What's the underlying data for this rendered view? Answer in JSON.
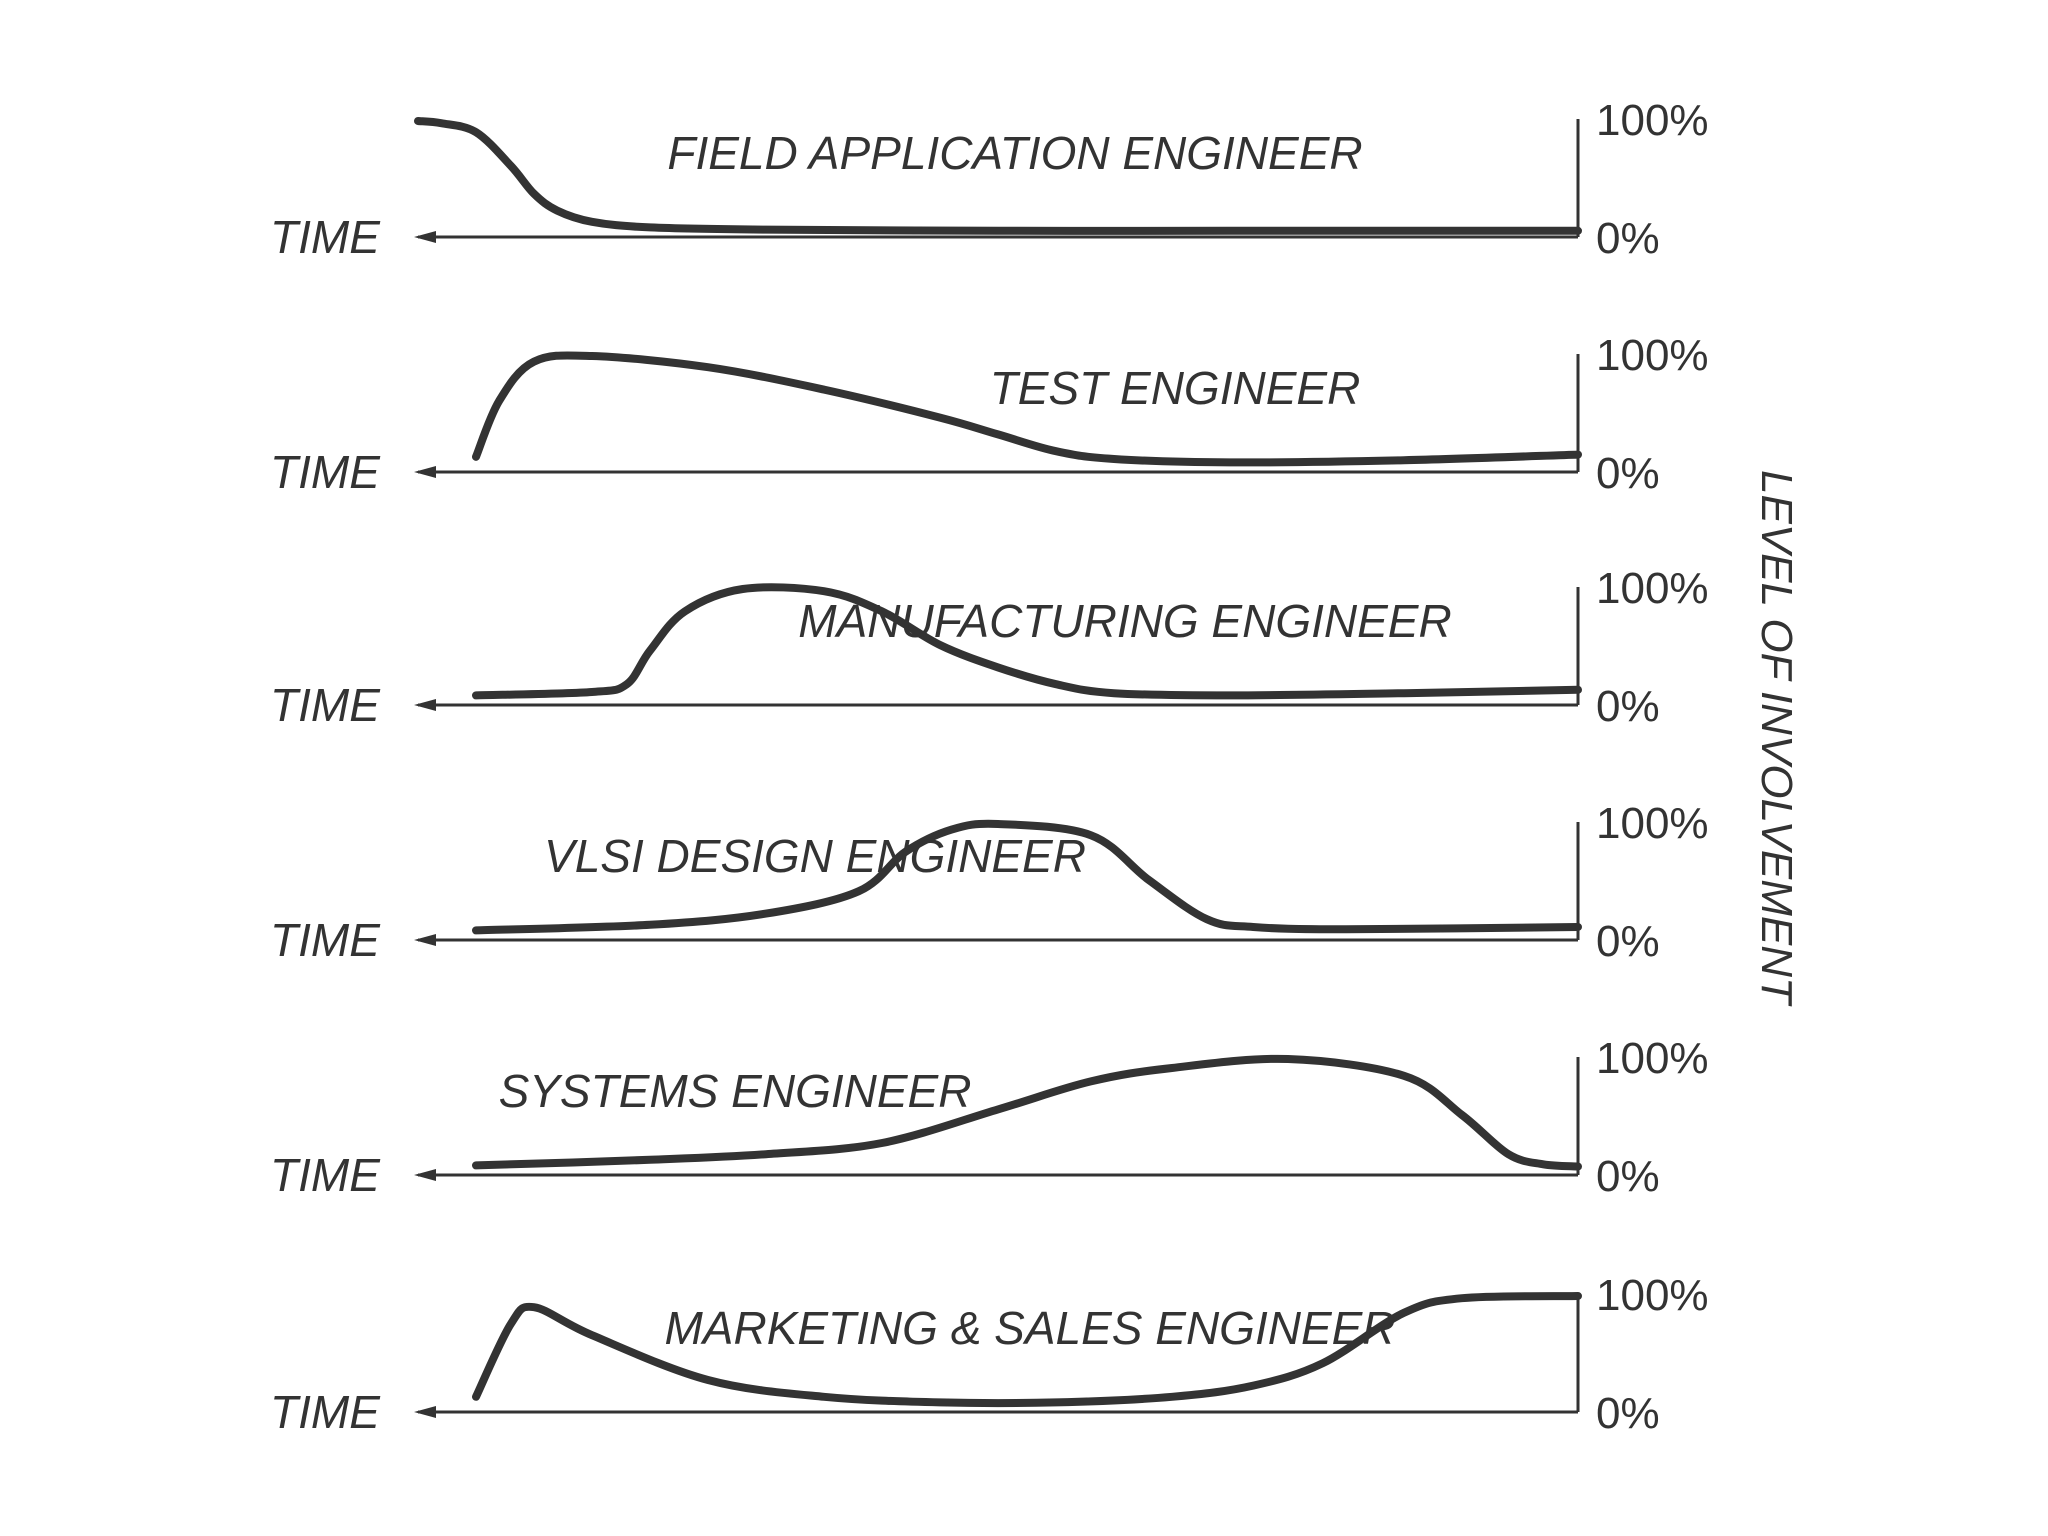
{
  "chart_data": {
    "type": "line",
    "ylabel": "LEVEL OF INVOLVEMENT",
    "xlabel": "TIME",
    "y_ticks": [
      "100%",
      "0%"
    ],
    "ylim": [
      0,
      100
    ],
    "colors": {
      "ink": "#333333",
      "background": "#ffffff"
    },
    "charts": [
      {
        "title": "FIELD APPLICATION ENGINEER",
        "x": [
          0,
          0.02,
          0.05,
          0.08,
          0.1,
          0.12,
          0.15,
          0.2,
          0.3,
          0.5,
          0.7,
          1.0
        ],
        "y": [
          100,
          98,
          90,
          60,
          35,
          20,
          10,
          5,
          3,
          2,
          2,
          2
        ]
      },
      {
        "title": "TEST ENGINEER",
        "x": [
          0.05,
          0.07,
          0.1,
          0.15,
          0.25,
          0.35,
          0.45,
          0.5,
          0.55,
          0.6,
          0.7,
          0.85,
          1.0
        ],
        "y": [
          10,
          60,
          95,
          100,
          90,
          70,
          45,
          30,
          15,
          8,
          5,
          7,
          12
        ]
      },
      {
        "title": "MANUFACTURING ENGINEER",
        "x": [
          0.05,
          0.15,
          0.18,
          0.2,
          0.23,
          0.28,
          0.35,
          0.4,
          0.45,
          0.5,
          0.55,
          0.6,
          0.7,
          0.85,
          1.0
        ],
        "y": [
          5,
          8,
          15,
          45,
          80,
          100,
          98,
          80,
          50,
          30,
          15,
          7,
          5,
          7,
          10
        ]
      },
      {
        "title": "VLSI DESIGN ENGINEER",
        "x": [
          0.05,
          0.2,
          0.3,
          0.38,
          0.42,
          0.46,
          0.5,
          0.58,
          0.63,
          0.68,
          0.72,
          0.8,
          1.0
        ],
        "y": [
          5,
          10,
          20,
          40,
          75,
          95,
          100,
          90,
          50,
          15,
          8,
          6,
          8
        ]
      },
      {
        "title": "SYSTEMS ENGINEER",
        "x": [
          0.05,
          0.2,
          0.3,
          0.4,
          0.5,
          0.58,
          0.65,
          0.75,
          0.85,
          0.9,
          0.94,
          0.97,
          1.0
        ],
        "y": [
          5,
          10,
          15,
          25,
          55,
          80,
          92,
          100,
          85,
          50,
          15,
          6,
          4
        ]
      },
      {
        "title": "MARKETING & SALES ENGINEER",
        "x": [
          0.05,
          0.08,
          0.1,
          0.15,
          0.25,
          0.35,
          0.45,
          0.55,
          0.65,
          0.72,
          0.78,
          0.85,
          0.9,
          1.0
        ],
        "y": [
          10,
          75,
          90,
          65,
          25,
          10,
          5,
          5,
          10,
          20,
          40,
          85,
          98,
          100
        ]
      }
    ]
  }
}
